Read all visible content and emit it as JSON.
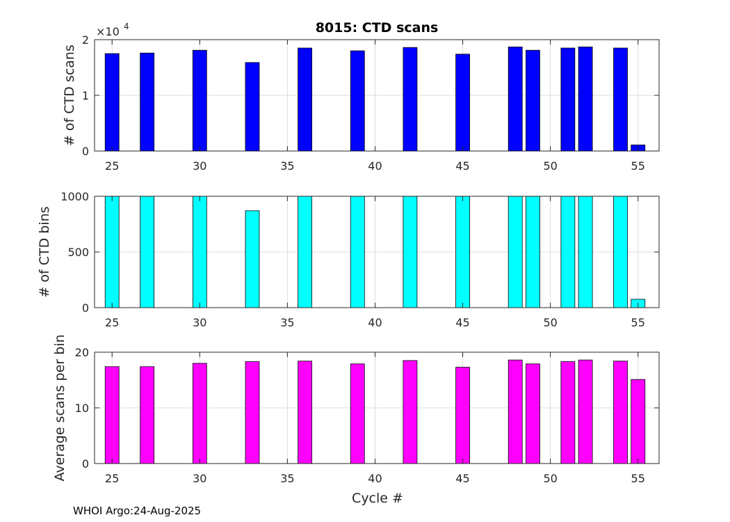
{
  "chart_data": [
    {
      "type": "bar",
      "title": "8015: CTD scans",
      "ylabel": "# of CTD scans",
      "xlabel": "",
      "exponent_label": "×10",
      "exponent_power": "4",
      "xlim": [
        24,
        56.2
      ],
      "ylim": [
        0,
        20000
      ],
      "xticks": [
        25,
        30,
        35,
        40,
        45,
        50,
        55
      ],
      "yticks": [
        0,
        10000,
        20000
      ],
      "ytick_labels": [
        "0",
        "1",
        "2"
      ],
      "color": "#0000ff",
      "x": [
        25,
        27,
        30,
        33,
        36,
        39,
        42,
        45,
        48,
        49,
        51,
        52,
        54,
        55
      ],
      "values": [
        17500,
        17600,
        18100,
        15900,
        18500,
        18000,
        18600,
        17400,
        18700,
        18100,
        18500,
        18700,
        18500,
        1100
      ]
    },
    {
      "type": "bar",
      "title": "",
      "ylabel": "# of CTD bins",
      "xlabel": "",
      "xlim": [
        24,
        56.2
      ],
      "ylim": [
        0,
        1000
      ],
      "xticks": [
        25,
        30,
        35,
        40,
        45,
        50,
        55
      ],
      "yticks": [
        0,
        500,
        1000
      ],
      "ytick_labels": [
        "0",
        "500",
        "1000"
      ],
      "color": "#00ffff",
      "x": [
        25,
        27,
        30,
        33,
        36,
        39,
        42,
        45,
        48,
        49,
        51,
        52,
        54,
        55
      ],
      "values": [
        1000,
        1000,
        1000,
        870,
        1000,
        1000,
        1000,
        1000,
        1000,
        1000,
        1000,
        1000,
        1000,
        75
      ]
    },
    {
      "type": "bar",
      "title": "",
      "ylabel": "Average scans per bin",
      "xlabel": "Cycle #",
      "xlim": [
        24,
        56.2
      ],
      "ylim": [
        0,
        20
      ],
      "xticks": [
        25,
        30,
        35,
        40,
        45,
        50,
        55
      ],
      "yticks": [
        0,
        10,
        20
      ],
      "ytick_labels": [
        "0",
        "10",
        "20"
      ],
      "color": "#ff00ff",
      "x": [
        25,
        27,
        30,
        33,
        36,
        39,
        42,
        45,
        48,
        49,
        51,
        52,
        54,
        55
      ],
      "values": [
        17.4,
        17.4,
        18.0,
        18.3,
        18.4,
        17.9,
        18.5,
        17.3,
        18.6,
        17.9,
        18.3,
        18.6,
        18.4,
        15.1
      ]
    }
  ],
  "footer": "WHOI Argo:24-Aug-2025"
}
